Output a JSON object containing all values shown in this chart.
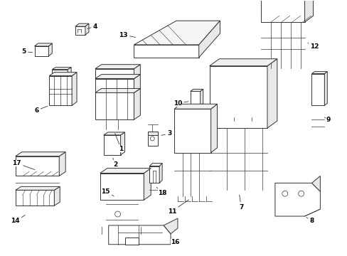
{
  "bg_color": "#ffffff",
  "line_color": "#333333",
  "text_color": "#000000",
  "components": [],
  "figsize": [
    4.89,
    3.6
  ],
  "dpi": 100
}
